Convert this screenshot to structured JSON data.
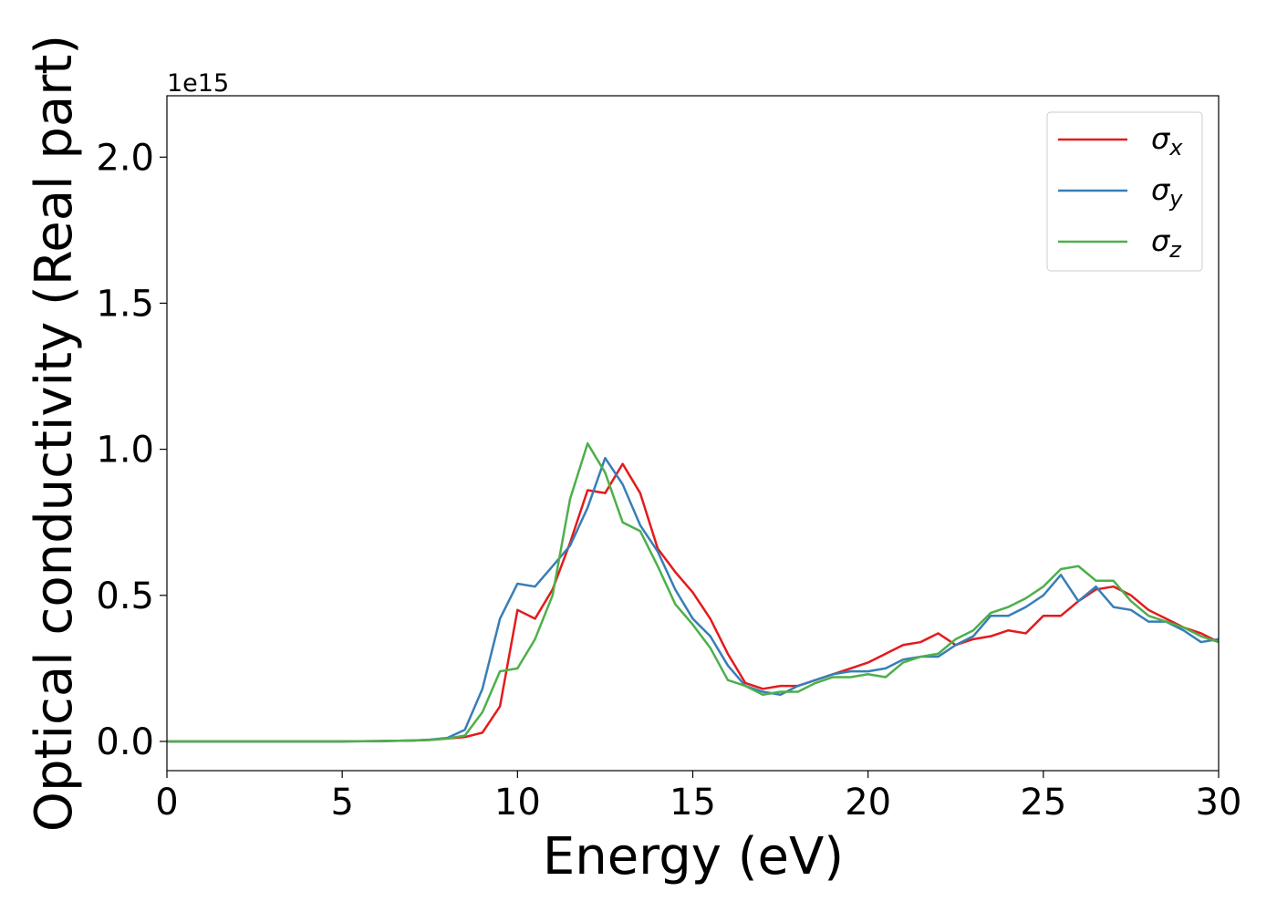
{
  "chart_data": {
    "type": "line",
    "x_label": "Energy (eV)",
    "y_label": "Optical conductivity (Real part)",
    "y_offset_label": "1e15",
    "x": [
      0,
      1,
      2,
      3,
      4,
      5,
      6,
      7,
      7.5,
      8,
      8.5,
      9,
      9.5,
      10,
      10.5,
      11,
      11.5,
      12,
      12.5,
      13,
      13.5,
      14,
      14.5,
      15,
      15.5,
      16,
      16.5,
      17,
      17.5,
      18,
      18.5,
      19,
      19.5,
      20,
      20.5,
      21,
      21.5,
      22,
      22.5,
      23,
      23.5,
      24,
      24.5,
      25,
      25.5,
      26,
      26.5,
      27,
      27.5,
      28,
      28.5,
      29,
      29.5,
      30
    ],
    "series": [
      {
        "name": "σx",
        "color": "#e41a1c",
        "values": [
          0,
          0,
          0,
          0,
          0,
          0,
          0.001,
          0.003,
          0.005,
          0.01,
          0.015,
          0.03,
          0.12,
          0.45,
          0.42,
          0.52,
          0.68,
          0.86,
          0.85,
          0.95,
          0.85,
          0.66,
          0.58,
          0.51,
          0.42,
          0.3,
          0.2,
          0.18,
          0.19,
          0.19,
          0.21,
          0.23,
          0.25,
          0.27,
          0.3,
          0.33,
          0.34,
          0.37,
          0.33,
          0.35,
          0.36,
          0.38,
          0.37,
          0.43,
          0.43,
          0.48,
          0.52,
          0.53,
          0.5,
          0.45,
          0.42,
          0.39,
          0.37,
          0.34
        ]
      },
      {
        "name": "σy",
        "color": "#377eb8",
        "values": [
          0,
          0,
          0,
          0,
          0,
          0,
          0.001,
          0.003,
          0.006,
          0.012,
          0.04,
          0.18,
          0.42,
          0.54,
          0.53,
          0.6,
          0.67,
          0.8,
          0.97,
          0.88,
          0.74,
          0.65,
          0.52,
          0.42,
          0.36,
          0.26,
          0.19,
          0.17,
          0.16,
          0.19,
          0.21,
          0.23,
          0.24,
          0.24,
          0.25,
          0.28,
          0.29,
          0.29,
          0.33,
          0.36,
          0.43,
          0.43,
          0.46,
          0.5,
          0.57,
          0.48,
          0.53,
          0.46,
          0.45,
          0.41,
          0.41,
          0.38,
          0.34,
          0.35
        ]
      },
      {
        "name": "σz",
        "color": "#4daf4a",
        "values": [
          0,
          0,
          0,
          0,
          0,
          0,
          0.001,
          0.003,
          0.005,
          0.01,
          0.02,
          0.1,
          0.24,
          0.25,
          0.35,
          0.5,
          0.83,
          1.02,
          0.92,
          0.75,
          0.72,
          0.6,
          0.47,
          0.4,
          0.32,
          0.21,
          0.19,
          0.16,
          0.17,
          0.17,
          0.2,
          0.22,
          0.22,
          0.23,
          0.22,
          0.27,
          0.29,
          0.3,
          0.35,
          0.38,
          0.44,
          0.46,
          0.49,
          0.53,
          0.59,
          0.6,
          0.55,
          0.55,
          0.48,
          0.43,
          0.41,
          0.39,
          0.36,
          0.34
        ]
      }
    ],
    "xlim": [
      0,
      30
    ],
    "xticks": [
      0,
      5,
      10,
      15,
      20,
      25,
      30
    ],
    "ylim": [
      -0.1,
      2.21
    ],
    "yticks": [
      {
        "value": 0,
        "label": "0.0"
      },
      0.5,
      {
        "value": 1,
        "label": "1.0"
      },
      1.5,
      {
        "value": 2,
        "label": "2.0"
      }
    ],
    "grid": false,
    "legend": "upper right"
  }
}
